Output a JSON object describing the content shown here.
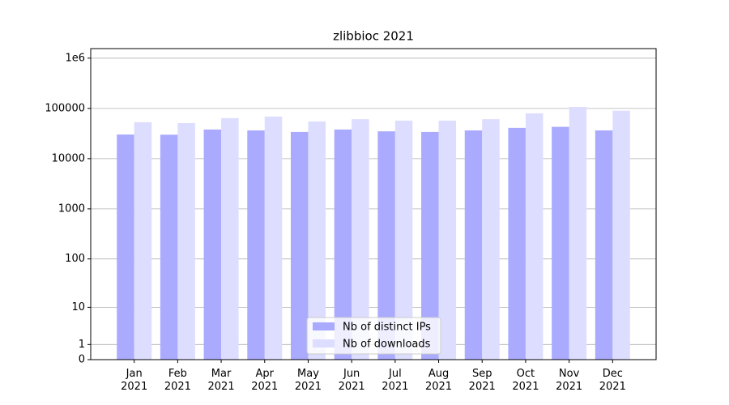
{
  "chart_data": {
    "type": "bar",
    "title": "zlibbioc 2021",
    "categories": [
      "Jan 2021",
      "Feb 2021",
      "Mar 2021",
      "Apr 2021",
      "May 2021",
      "Jun 2021",
      "Jul 2021",
      "Aug 2021",
      "Sep 2021",
      "Oct 2021",
      "Nov 2021",
      "Dec 2021"
    ],
    "series": [
      {
        "name": "Nb of distinct IPs",
        "color": "#aaaaff",
        "values": [
          30200,
          30000,
          38000,
          36500,
          34000,
          38000,
          35000,
          34000,
          36500,
          41000,
          43000,
          36500
        ]
      },
      {
        "name": "Nb of downloads",
        "color": "#ddddff",
        "values": [
          53000,
          51000,
          64000,
          69000,
          55000,
          61000,
          57000,
          57000,
          61000,
          80000,
          107000,
          90000
        ]
      }
    ],
    "y_scale": "symlog",
    "ylim": [
      0,
      1550000
    ],
    "yticks": [
      0,
      1,
      10,
      100,
      1000,
      10000,
      100000,
      {
        "value": 1000000,
        "label": "1e6"
      }
    ],
    "grid": true,
    "legend": "lower center"
  }
}
